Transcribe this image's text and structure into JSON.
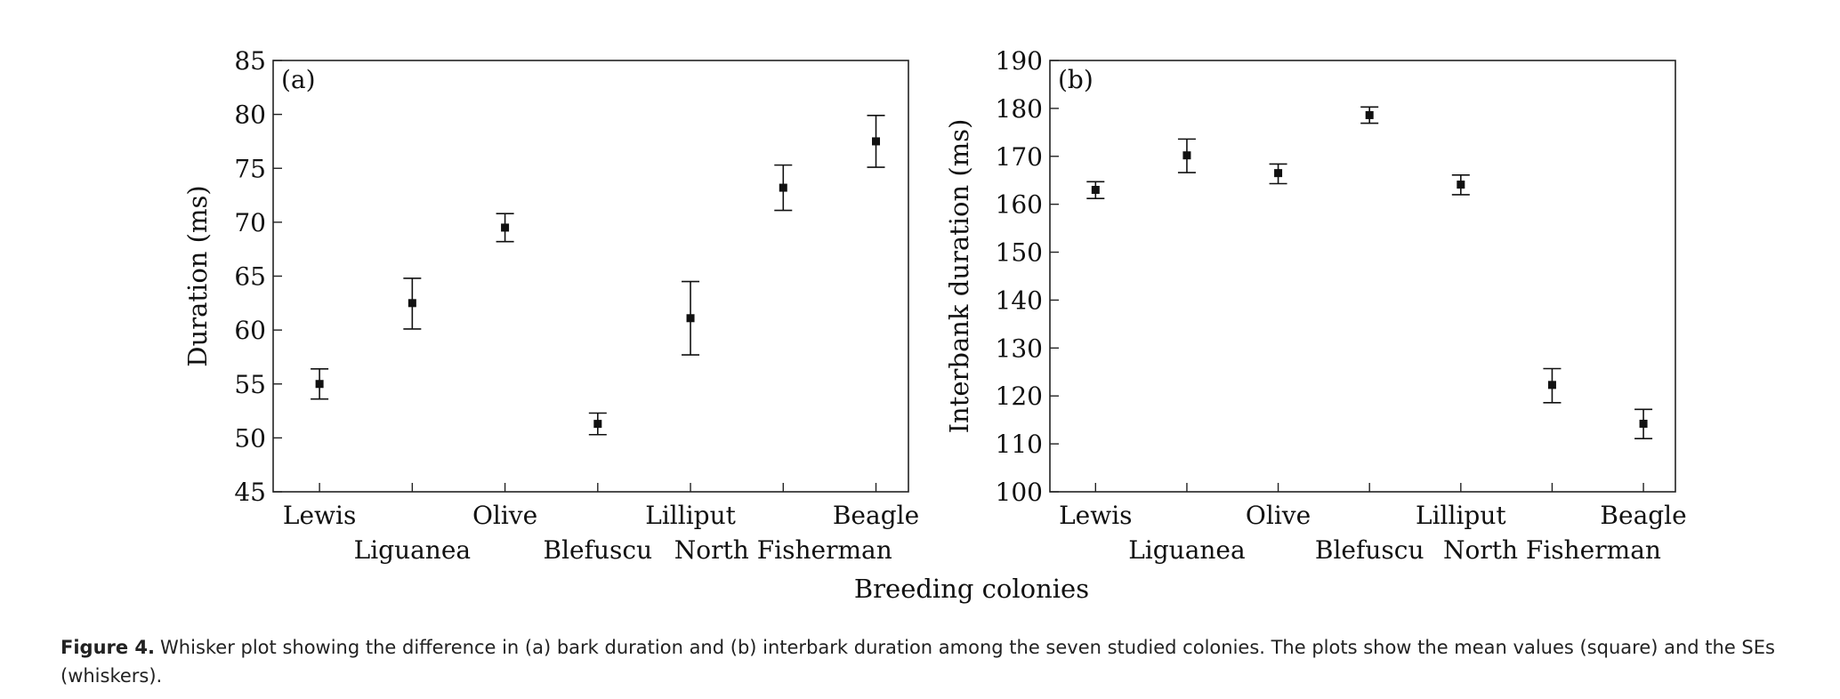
{
  "chart_data": [
    {
      "type": "scatter",
      "panel_label": "(a)",
      "title": "",
      "xlabel": "",
      "ylabel": "Duration (ms)",
      "ylim": [
        45,
        85
      ],
      "yticks": [
        45,
        50,
        55,
        60,
        65,
        70,
        75,
        80,
        85
      ],
      "categories": [
        "Lewis",
        "Liguanea",
        "Olive",
        "Blefuscu",
        "Lilliput",
        "North Fisherman",
        "Beagle"
      ],
      "series": [
        {
          "mean": [
            55.0,
            62.5,
            69.5,
            51.3,
            61.1,
            73.2,
            77.5
          ],
          "se_upper": [
            56.4,
            64.8,
            70.8,
            52.3,
            64.5,
            75.3,
            79.9
          ],
          "se_lower": [
            53.6,
            60.1,
            68.2,
            50.3,
            57.7,
            71.1,
            75.1
          ]
        }
      ],
      "grid": false,
      "legend": "none"
    },
    {
      "type": "scatter",
      "panel_label": "(b)",
      "title": "",
      "xlabel": "",
      "ylabel": "Interbank duration (ms)",
      "ylim": [
        100,
        190
      ],
      "yticks": [
        100,
        110,
        120,
        130,
        140,
        150,
        160,
        170,
        180,
        190
      ],
      "categories": [
        "Lewis",
        "Liguanea",
        "Olive",
        "Blefuscu",
        "Lilliput",
        "North Fisherman",
        "Beagle"
      ],
      "series": [
        {
          "mean": [
            163.0,
            170.2,
            166.5,
            178.6,
            164.1,
            122.3,
            114.2
          ],
          "se_upper": [
            164.7,
            173.6,
            168.4,
            180.3,
            166.1,
            125.7,
            117.2
          ],
          "se_lower": [
            161.2,
            166.6,
            164.3,
            176.9,
            162.0,
            118.6,
            111.1
          ]
        }
      ],
      "grid": false,
      "legend": "none"
    }
  ],
  "shared_xlabel": "Breeding colonies",
  "caption": {
    "label": "Figure 4.",
    "text": "Whisker plot showing the difference in (a) bark duration and (b) interbark duration among the seven studied colonies. The plots show the mean values (square) and the SEs (whiskers)."
  },
  "colors": {
    "marks": "#111111",
    "axes": "#222222",
    "background": "#ffffff"
  }
}
